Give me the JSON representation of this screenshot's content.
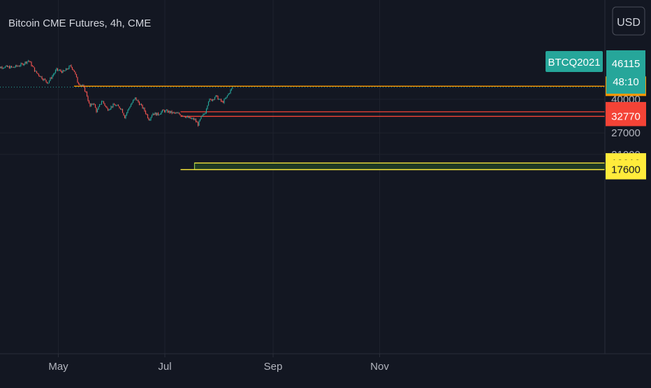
{
  "header": {
    "title": "Bitcoin CME Futures, 4h, CME"
  },
  "currency": "USD",
  "symbol_tag": "BTCQ2021",
  "last_price": {
    "value": "46115",
    "countdown": "48:10"
  },
  "colors": {
    "background": "#131722",
    "up": "#26a69a",
    "down": "#ef5350",
    "orange": "#ff9800",
    "red": "#f44336",
    "yellow": "#ffeb3b",
    "zone_fill": "#1e3a24",
    "zone_border": "#8bc34a",
    "axis_text": "#b2b5be",
    "grid": "#1e222d"
  },
  "chart_data": {
    "type": "candlestick",
    "x_ticks": [
      "May",
      "Jul",
      "Sep",
      "Nov"
    ],
    "y_ticks": [
      40000,
      27000,
      21000
    ],
    "y_scale": "log",
    "y_range": [
      14500,
      57000
    ],
    "x_range": [
      "2021-03-25",
      "2021-12-05"
    ],
    "horizontal_levels": [
      {
        "label": "46585",
        "value": 46585,
        "color": "orange",
        "start": "2021-05-10"
      },
      {
        "label": "34565",
        "value": 34565,
        "color": "red",
        "start": "2021-07-10"
      },
      {
        "label": "32770",
        "value": 32770,
        "color": "red",
        "start": "2021-07-10"
      },
      {
        "label": "19010",
        "value": 19010,
        "color": "yellow",
        "start": "2021-07-18"
      },
      {
        "label": "17600",
        "value": 17600,
        "color": "yellow",
        "start": "2021-07-10"
      }
    ],
    "zone": {
      "from": 17600,
      "to": 19010,
      "start": "2021-07-18"
    },
    "price_path": [
      [
        "2021-03-25",
        57000
      ],
      [
        "2021-03-30",
        58500
      ],
      [
        "2021-04-05",
        58000
      ],
      [
        "2021-04-10",
        60000
      ],
      [
        "2021-04-14",
        63000
      ],
      [
        "2021-04-18",
        55000
      ],
      [
        "2021-04-22",
        51000
      ],
      [
        "2021-04-25",
        48500
      ],
      [
        "2021-04-30",
        56500
      ],
      [
        "2021-05-04",
        55000
      ],
      [
        "2021-05-08",
        59000
      ],
      [
        "2021-05-10",
        56000
      ],
      [
        "2021-05-12",
        49000
      ],
      [
        "2021-05-15",
        46500
      ],
      [
        "2021-05-17",
        43000
      ],
      [
        "2021-05-19",
        36500
      ],
      [
        "2021-05-21",
        38500
      ],
      [
        "2021-05-23",
        34500
      ],
      [
        "2021-05-26",
        39500
      ],
      [
        "2021-05-29",
        35500
      ],
      [
        "2021-06-02",
        37500
      ],
      [
        "2021-06-06",
        36000
      ],
      [
        "2021-06-08",
        32500
      ],
      [
        "2021-06-11",
        37000
      ],
      [
        "2021-06-14",
        40500
      ],
      [
        "2021-06-16",
        38500
      ],
      [
        "2021-06-19",
        35500
      ],
      [
        "2021-06-22",
        31500
      ],
      [
        "2021-06-24",
        34000
      ],
      [
        "2021-06-27",
        33500
      ],
      [
        "2021-06-30",
        35000
      ],
      [
        "2021-07-03",
        34600
      ],
      [
        "2021-07-06",
        34000
      ],
      [
        "2021-07-09",
        33800
      ],
      [
        "2021-07-12",
        33000
      ],
      [
        "2021-07-15",
        32000
      ],
      [
        "2021-07-18",
        31600
      ],
      [
        "2021-07-20",
        29800
      ],
      [
        "2021-07-22",
        32500
      ],
      [
        "2021-07-24",
        34000
      ],
      [
        "2021-07-26",
        39500
      ],
      [
        "2021-07-28",
        39800
      ],
      [
        "2021-07-30",
        41500
      ],
      [
        "2021-08-01",
        40000
      ],
      [
        "2021-08-03",
        38500
      ],
      [
        "2021-08-05",
        40500
      ],
      [
        "2021-08-07",
        43500
      ],
      [
        "2021-08-09",
        46115
      ]
    ],
    "last_price": 46115
  }
}
